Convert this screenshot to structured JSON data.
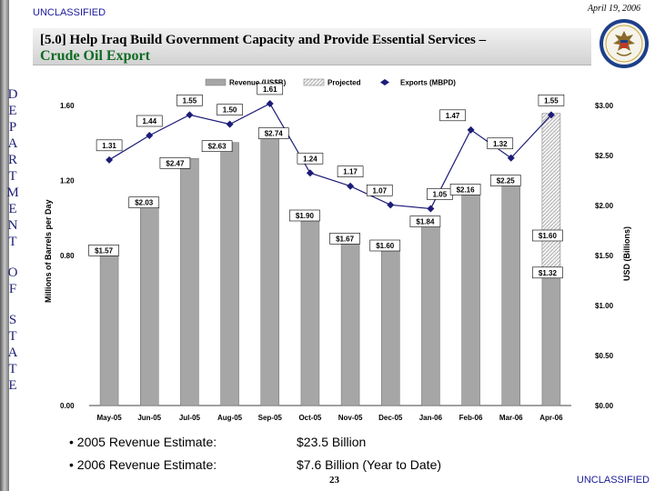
{
  "header": {
    "classification": "UNCLASSIFIED",
    "date": "April 19, 2006",
    "title_line1": "[5.0] Help Iraq Build Government Capacity and Provide Essential Services –",
    "title_line2": "Crude Oil Export",
    "side_title_word1": "DEPARTMENT",
    "side_title_word2": "OF",
    "side_title_word3": "STATE"
  },
  "chart_data": {
    "type": "bar-line combo",
    "categories": [
      "May-05",
      "Jun-05",
      "Jul-05",
      "Aug-05",
      "Sep-05",
      "Oct-05",
      "Nov-05",
      "Dec-05",
      "Jan-06",
      "Feb-06",
      "Mar-06",
      "Apr-06"
    ],
    "legend": [
      "Revenue (US$B)",
      "Projected",
      "Exports (MBPD)"
    ],
    "legend_position": "top",
    "ylabel_left": "Millions of Barrels per Day",
    "ylabel_right": "USD (Billions)",
    "ylim_left": [
      0,
      1.6
    ],
    "ylim_right": [
      0,
      3.0
    ],
    "yticks_left": [
      "0.00",
      "0.80",
      "1.20",
      "1.60"
    ],
    "yticks_left_values": [
      0,
      0.8,
      1.2,
      1.6
    ],
    "yticks_right": [
      "$0.00",
      "$0.50",
      "$1.00",
      "$1.50",
      "$2.00",
      "$2.50",
      "$3.00"
    ],
    "yticks_right_values": [
      0,
      0.5,
      1.0,
      1.5,
      2.0,
      2.5,
      3.0
    ],
    "exports_mbpd": [
      1.31,
      1.44,
      1.55,
      1.5,
      1.61,
      1.24,
      1.17,
      1.07,
      1.05,
      1.47,
      1.32,
      1.55
    ],
    "export_labels": [
      "1.31",
      "1.44",
      "1.55",
      "1.50",
      "1.61",
      "1.24",
      "1.17",
      "1.07",
      "1.05",
      "1.47",
      "1.32",
      "1.55"
    ],
    "revenue_usd_billions": [
      1.57,
      2.03,
      2.47,
      2.63,
      2.74,
      1.9,
      1.67,
      1.6,
      1.84,
      2.16,
      2.25,
      1.32
    ],
    "revenue_labels": [
      "$1.57",
      "$2.03",
      "$2.47",
      "$2.63",
      "$2.74",
      "$1.90",
      "$1.67",
      "$1.60",
      "$1.84",
      "$2.16",
      "$2.25",
      "$1.32"
    ],
    "projected_usd_billions": [
      0,
      0,
      0,
      0,
      0,
      0,
      0,
      0,
      0,
      0,
      0,
      1.6
    ],
    "projected_labels": [
      "",
      "",
      "",
      "",
      "",
      "",
      "",
      "",
      "",
      "",
      "",
      "$1.60"
    ],
    "colors": {
      "bar": "#a6a6a6",
      "projected": "#e8e8e8",
      "line": "#1c1c78",
      "label_text": "#000000"
    }
  },
  "summary": {
    "row1_label": "2005 Revenue Estimate:",
    "row1_value": "$23.5 Billion",
    "row2_label": "2006 Revenue Estimate:",
    "row2_value": "$7.6 Billion (Year to Date)"
  },
  "footer": {
    "page_number": "23",
    "classification": "UNCLASSIFIED"
  }
}
